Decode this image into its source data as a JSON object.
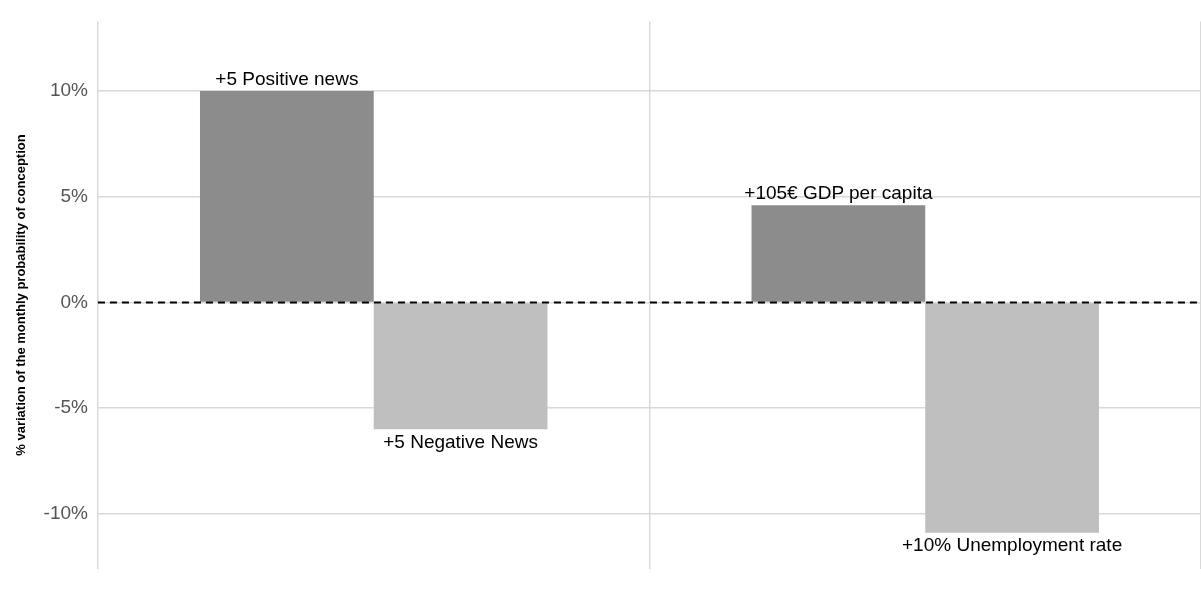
{
  "chart_data": {
    "type": "bar",
    "ylabel": "% variation of the monthly probability of conception",
    "categories": [
      null,
      null
    ],
    "series": [
      {
        "color": "#8c8c8c",
        "values": [
          10,
          4.6
        ]
      },
      {
        "color": "#bfbfbf",
        "values": [
          -6,
          -10.9
        ]
      }
    ],
    "ylim": [
      -12.6,
      13.3
    ],
    "yticks": [
      {
        "value": -10,
        "label": "-10%"
      },
      {
        "value": -5,
        "label": "-5%"
      },
      {
        "value": 0,
        "label": "0%"
      },
      {
        "value": 5,
        "label": "5%"
      },
      {
        "value": 10,
        "label": "10%"
      }
    ],
    "grid": true,
    "legend": false,
    "ref_lines": [
      {
        "axis": "y",
        "value": 0,
        "color": "#000000",
        "line_style": "dashed"
      }
    ],
    "annotations": [
      {
        "text": "+5 Positive news",
        "y": 10
      },
      {
        "text": "+5 Negative News",
        "y": -6
      },
      {
        "text": "+105€ GDP per capita",
        "y": 4.6
      },
      {
        "text": "+10% Unemployment rate",
        "y": -10.9
      }
    ]
  }
}
